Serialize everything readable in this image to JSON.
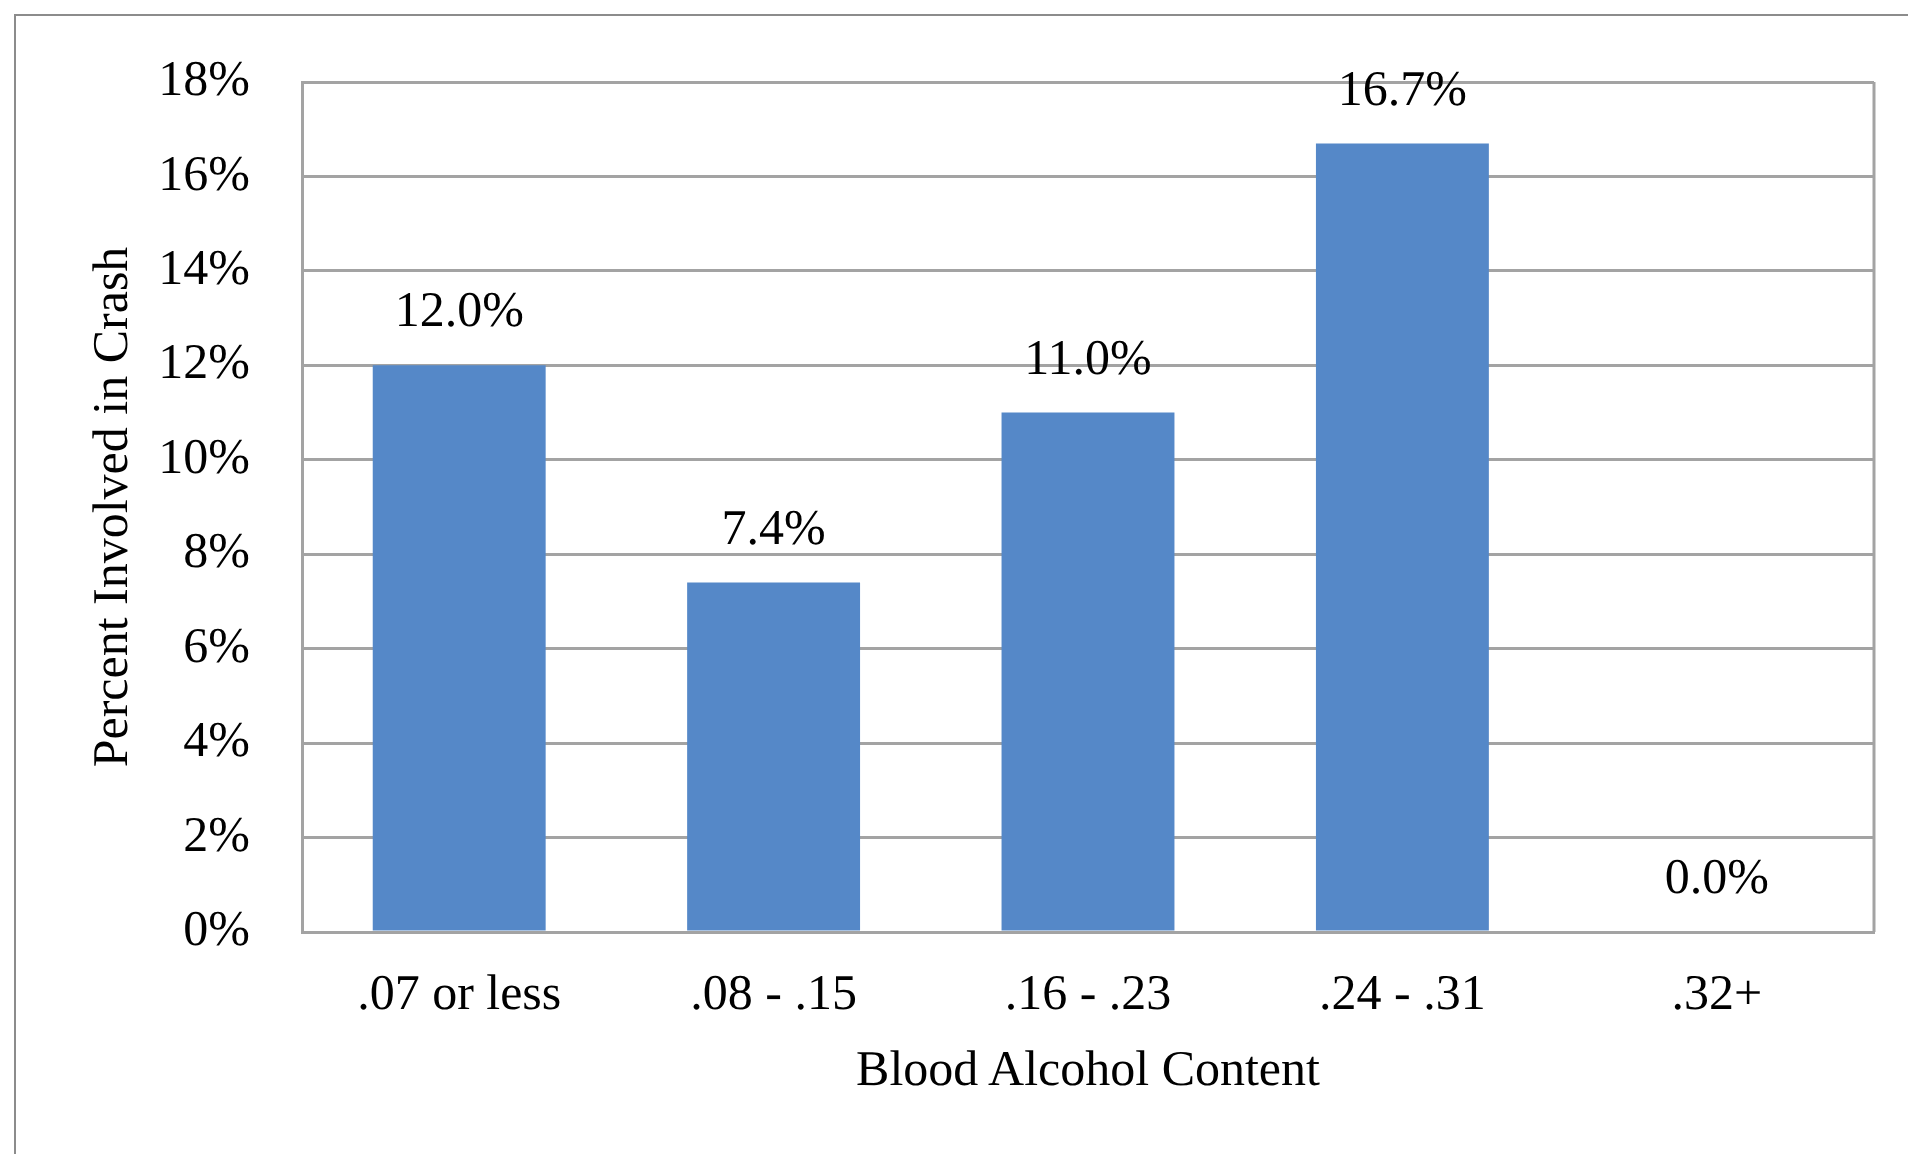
{
  "chart_data": {
    "type": "bar",
    "categories": [
      ".07 or less",
      ".08 - .15",
      ".16 - .23",
      ".24 - .31",
      ".32+"
    ],
    "values": [
      12.0,
      7.4,
      11.0,
      16.7,
      0.0
    ],
    "value_labels": [
      "12.0%",
      "7.4%",
      "11.0%",
      "16.7%",
      "0.0%"
    ],
    "color": "#5588c8",
    "xlabel": "Blood Alcohol Content",
    "ylabel": "Percent Involved in Crash",
    "ylim": [
      0,
      18
    ],
    "yticks": [
      {
        "value": 0,
        "label": "0%"
      },
      {
        "value": 2,
        "label": "2%"
      },
      {
        "value": 4,
        "label": "4%"
      },
      {
        "value": 6,
        "label": "6%"
      },
      {
        "value": 8,
        "label": "8%"
      },
      {
        "value": 10,
        "label": "10%"
      },
      {
        "value": 12,
        "label": "12%"
      },
      {
        "value": 14,
        "label": "14%"
      },
      {
        "value": 16,
        "label": "16%"
      },
      {
        "value": 18,
        "label": "18%"
      }
    ],
    "grid": "y"
  }
}
